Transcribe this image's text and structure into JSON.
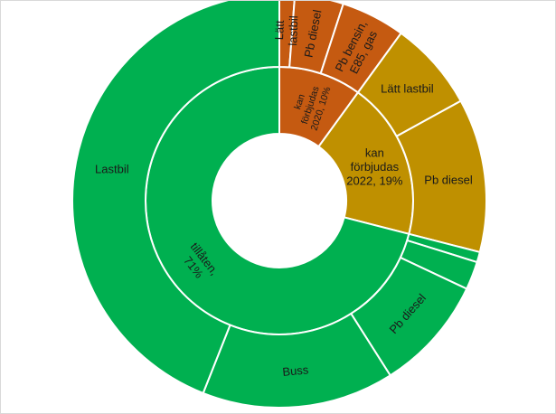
{
  "chart_data": {
    "type": "sunburst",
    "title": "",
    "colors": {
      "tillaten": "#00b050",
      "kan_forbjudas_2022": "#bf9000",
      "kan_forbjudas_2020": "#c55a11"
    },
    "inner": [
      {
        "label": "kan förbjudas 2020, 10%",
        "value": 10,
        "color": "#c55a11"
      },
      {
        "label": "kan förbjudas 2022, 19%",
        "value": 19,
        "color": "#bf9000"
      },
      {
        "label": "tillåten, 71%",
        "value": 71,
        "color": "#00b050"
      }
    ],
    "outer": [
      {
        "label": "Lätt lastbil",
        "parent": "kan förbjudas 2020, 10%",
        "value": 1.2,
        "color": "#c55a11"
      },
      {
        "label": "Pb diesel",
        "parent": "kan förbjudas 2020, 10%",
        "value": 3.8,
        "color": "#c55a11"
      },
      {
        "label": "Pb bensin, E85, gas",
        "parent": "kan förbjudas 2020, 10%",
        "value": 5.0,
        "color": "#c55a11"
      },
      {
        "label": "Lätt lastbil",
        "parent": "kan förbjudas 2022, 19%",
        "value": 7.0,
        "color": "#bf9000"
      },
      {
        "label": "Pb diesel",
        "parent": "kan förbjudas 2022, 19%",
        "value": 12.0,
        "color": "#bf9000"
      },
      {
        "label": "",
        "parent": "tillåten, 71%",
        "value": 0.8,
        "color": "#00b050"
      },
      {
        "label": "",
        "parent": "tillåten, 71%",
        "value": 2.2,
        "color": "#00b050"
      },
      {
        "label": "Pb diesel",
        "parent": "tillåten, 71%",
        "value": 9.0,
        "color": "#00b050"
      },
      {
        "label": "Buss",
        "parent": "tillåten, 71%",
        "value": 15.0,
        "color": "#00b050"
      },
      {
        "label": "Lastbil",
        "parent": "tillåten, 71%",
        "value": 44.0,
        "color": "#00b050"
      }
    ]
  }
}
